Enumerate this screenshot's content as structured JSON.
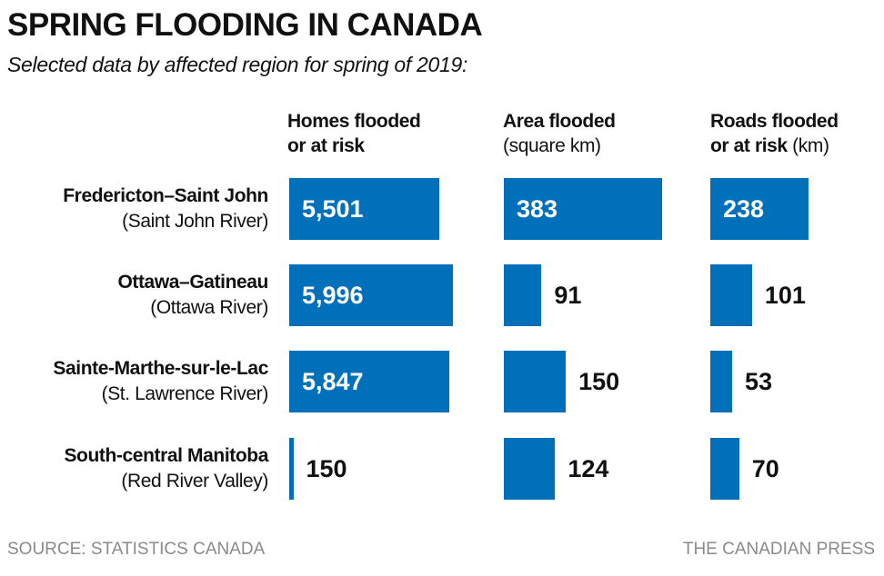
{
  "chart_data": {
    "type": "bar",
    "orientation": "horizontal",
    "title": "SPRING FLOODING IN CANADA",
    "subtitle": "Selected data by affected region for spring of 2019:",
    "bar_color": "#0070ba",
    "columns": [
      {
        "label_bold": "Homes flooded",
        "label_bold2": "or at risk",
        "label_unit": ""
      },
      {
        "label_bold": "Area flooded",
        "label_bold2": "",
        "label_unit": "(square km)"
      },
      {
        "label_bold": "Roads flooded",
        "label_bold2": "or at risk",
        "label_unit": "(km)"
      }
    ],
    "rows": [
      {
        "name": "Fredericton–Saint John",
        "sub": "(Saint John River)",
        "values": [
          5501,
          383,
          238
        ],
        "labels": [
          "5,501",
          "383",
          "238"
        ]
      },
      {
        "name": "Ottawa–Gatineau",
        "sub": "(Ottawa River)",
        "values": [
          5996,
          91,
          101
        ],
        "labels": [
          "5,996",
          "91",
          "101"
        ]
      },
      {
        "name": "Sainte-Marthe-sur-le-Lac",
        "sub": "(St. Lawrence River)",
        "values": [
          5847,
          150,
          53
        ],
        "labels": [
          "5,847",
          "150",
          "53"
        ]
      },
      {
        "name": "South-central Manitoba",
        "sub": "(Red River Valley)",
        "values": [
          150,
          124,
          70
        ],
        "labels": [
          "150",
          "124",
          "70"
        ]
      }
    ]
  },
  "footer": {
    "source": "SOURCE: STATISTICS CANADA",
    "credit": "THE CANADIAN PRESS"
  }
}
